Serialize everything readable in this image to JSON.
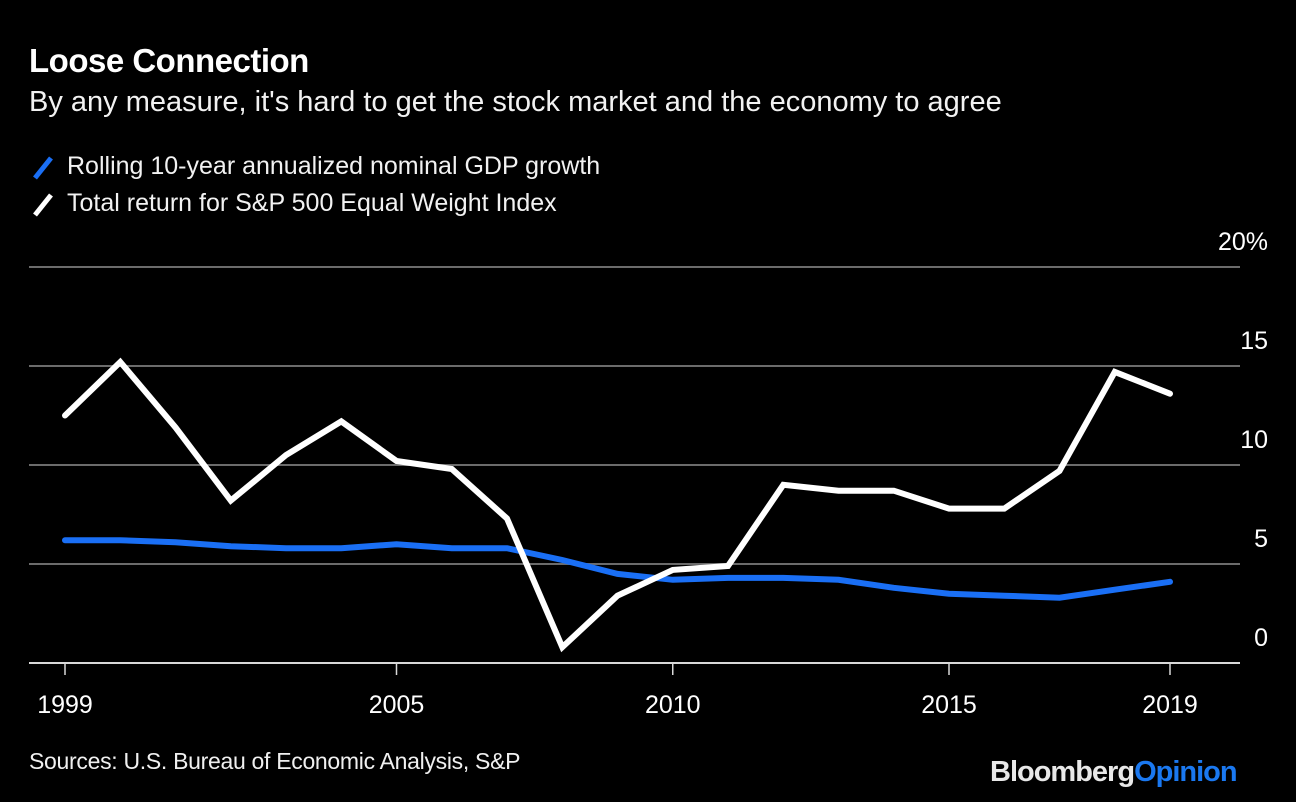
{
  "header": {
    "title": "Loose Connection",
    "subtitle": "By any measure, it's hard to get the stock market and the economy to agree"
  },
  "footer": {
    "source": "Sources: U.S. Bureau of Economic Analysis, S&P",
    "brand_part1": "Bloomberg",
    "brand_part2": "Opinion"
  },
  "colors": {
    "background": "#000000",
    "gdp_series": "#1a6ff5",
    "sp_series": "#ffffff",
    "gridline": "#6b6b6b",
    "brand_accent": "#1a78f0"
  },
  "chart_data": {
    "type": "line",
    "title": "Loose Connection",
    "subtitle": "By any measure, it's hard to get the stock market and the economy to agree",
    "xlabel": "",
    "ylabel": "",
    "x": [
      1999,
      2000,
      2001,
      2002,
      2003,
      2004,
      2005,
      2006,
      2007,
      2008,
      2009,
      2010,
      2011,
      2012,
      2013,
      2014,
      2015,
      2016,
      2017,
      2018,
      2019
    ],
    "xlim": [
      1999,
      2019
    ],
    "ylim": [
      0,
      20
    ],
    "x_ticks": [
      1999,
      2005,
      2010,
      2015,
      2019
    ],
    "x_tick_labels": [
      "1999",
      "2005",
      "2010",
      "2015",
      "2019"
    ],
    "y_ticks": [
      0,
      5,
      10,
      15,
      20
    ],
    "y_tick_labels": [
      "0",
      "5",
      "10",
      "15",
      "20%"
    ],
    "y_axis_side": "right",
    "grid": true,
    "legend_position": "top-left",
    "series": [
      {
        "name": "Rolling 10-year annualized nominal GDP growth",
        "color": "#1a6ff5",
        "values": [
          6.2,
          6.2,
          6.1,
          5.9,
          5.8,
          5.8,
          6.0,
          5.8,
          5.8,
          5.2,
          4.5,
          4.2,
          4.3,
          4.3,
          4.2,
          3.8,
          3.5,
          3.4,
          3.3,
          3.7,
          4.1
        ]
      },
      {
        "name": "Total return for S&P 500 Equal Weight Index",
        "color": "#ffffff",
        "values": [
          12.5,
          15.2,
          11.9,
          8.2,
          10.5,
          12.2,
          10.2,
          9.8,
          7.3,
          0.8,
          3.4,
          4.7,
          4.9,
          9.0,
          8.7,
          8.7,
          7.8,
          7.8,
          9.7,
          14.7,
          13.6
        ]
      }
    ],
    "source": "Sources: U.S. Bureau of Economic Analysis, S&P"
  }
}
